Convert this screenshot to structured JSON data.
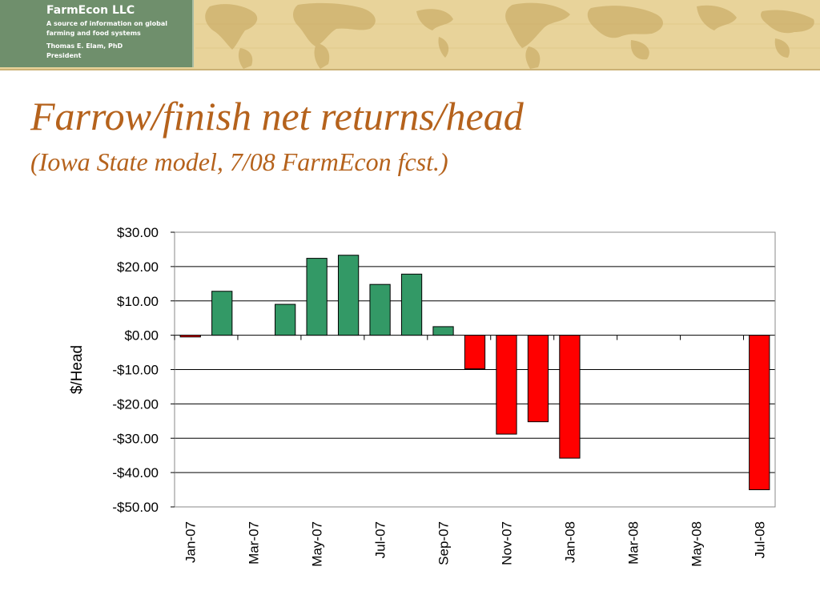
{
  "header": {
    "company": "FarmEcon LLC",
    "tagline": "A source of information on global farming and food systems",
    "person_name": "Thomas E. Elam, PhD",
    "person_title": "President",
    "banner_color": "#e8d39a",
    "brand_color": "#6f8f6c"
  },
  "slide": {
    "title": "Farrow/finish net returns/head",
    "subtitle": "(Iowa State model, 7/08 FarmEcon fcst.)",
    "title_color": "#b5621c"
  },
  "chart_data": {
    "type": "bar",
    "ylabel": "$/Head",
    "ylim": [
      -50,
      30
    ],
    "yticks": [
      30,
      20,
      10,
      0,
      -10,
      -20,
      -30,
      -40,
      -50
    ],
    "ytick_labels": [
      "$30.00",
      "$20.00",
      "$10.00",
      "$0.00",
      "-$10.00",
      "-$20.00",
      "-$30.00",
      "-$40.00",
      "-$50.00"
    ],
    "categories": [
      "Jan-07",
      "Feb-07",
      "Mar-07",
      "Apr-07",
      "May-07",
      "Jun-07",
      "Jul-07",
      "Aug-07",
      "Sep-07",
      "Oct-07",
      "Nov-07",
      "Dec-07",
      "Jan-08",
      "Feb-08",
      "Mar-08",
      "Apr-08",
      "May-08",
      "Jun-08",
      "Jul-08"
    ],
    "xtick_labels": [
      "Jan-07",
      "Mar-07",
      "May-07",
      "Jul-07",
      "Sep-07",
      "Nov-07",
      "Jan-08",
      "Mar-08",
      "May-08",
      "Jul-08"
    ],
    "values": [
      -0.5,
      12.8,
      null,
      9.0,
      22.4,
      23.3,
      14.8,
      17.8,
      2.5,
      -9.8,
      -28.8,
      -25.2,
      -35.8,
      null,
      null,
      null,
      null,
      null,
      -45.0
    ],
    "positive_color": "#339966",
    "negative_color": "#ff0000",
    "grid": true,
    "legend": "none"
  }
}
